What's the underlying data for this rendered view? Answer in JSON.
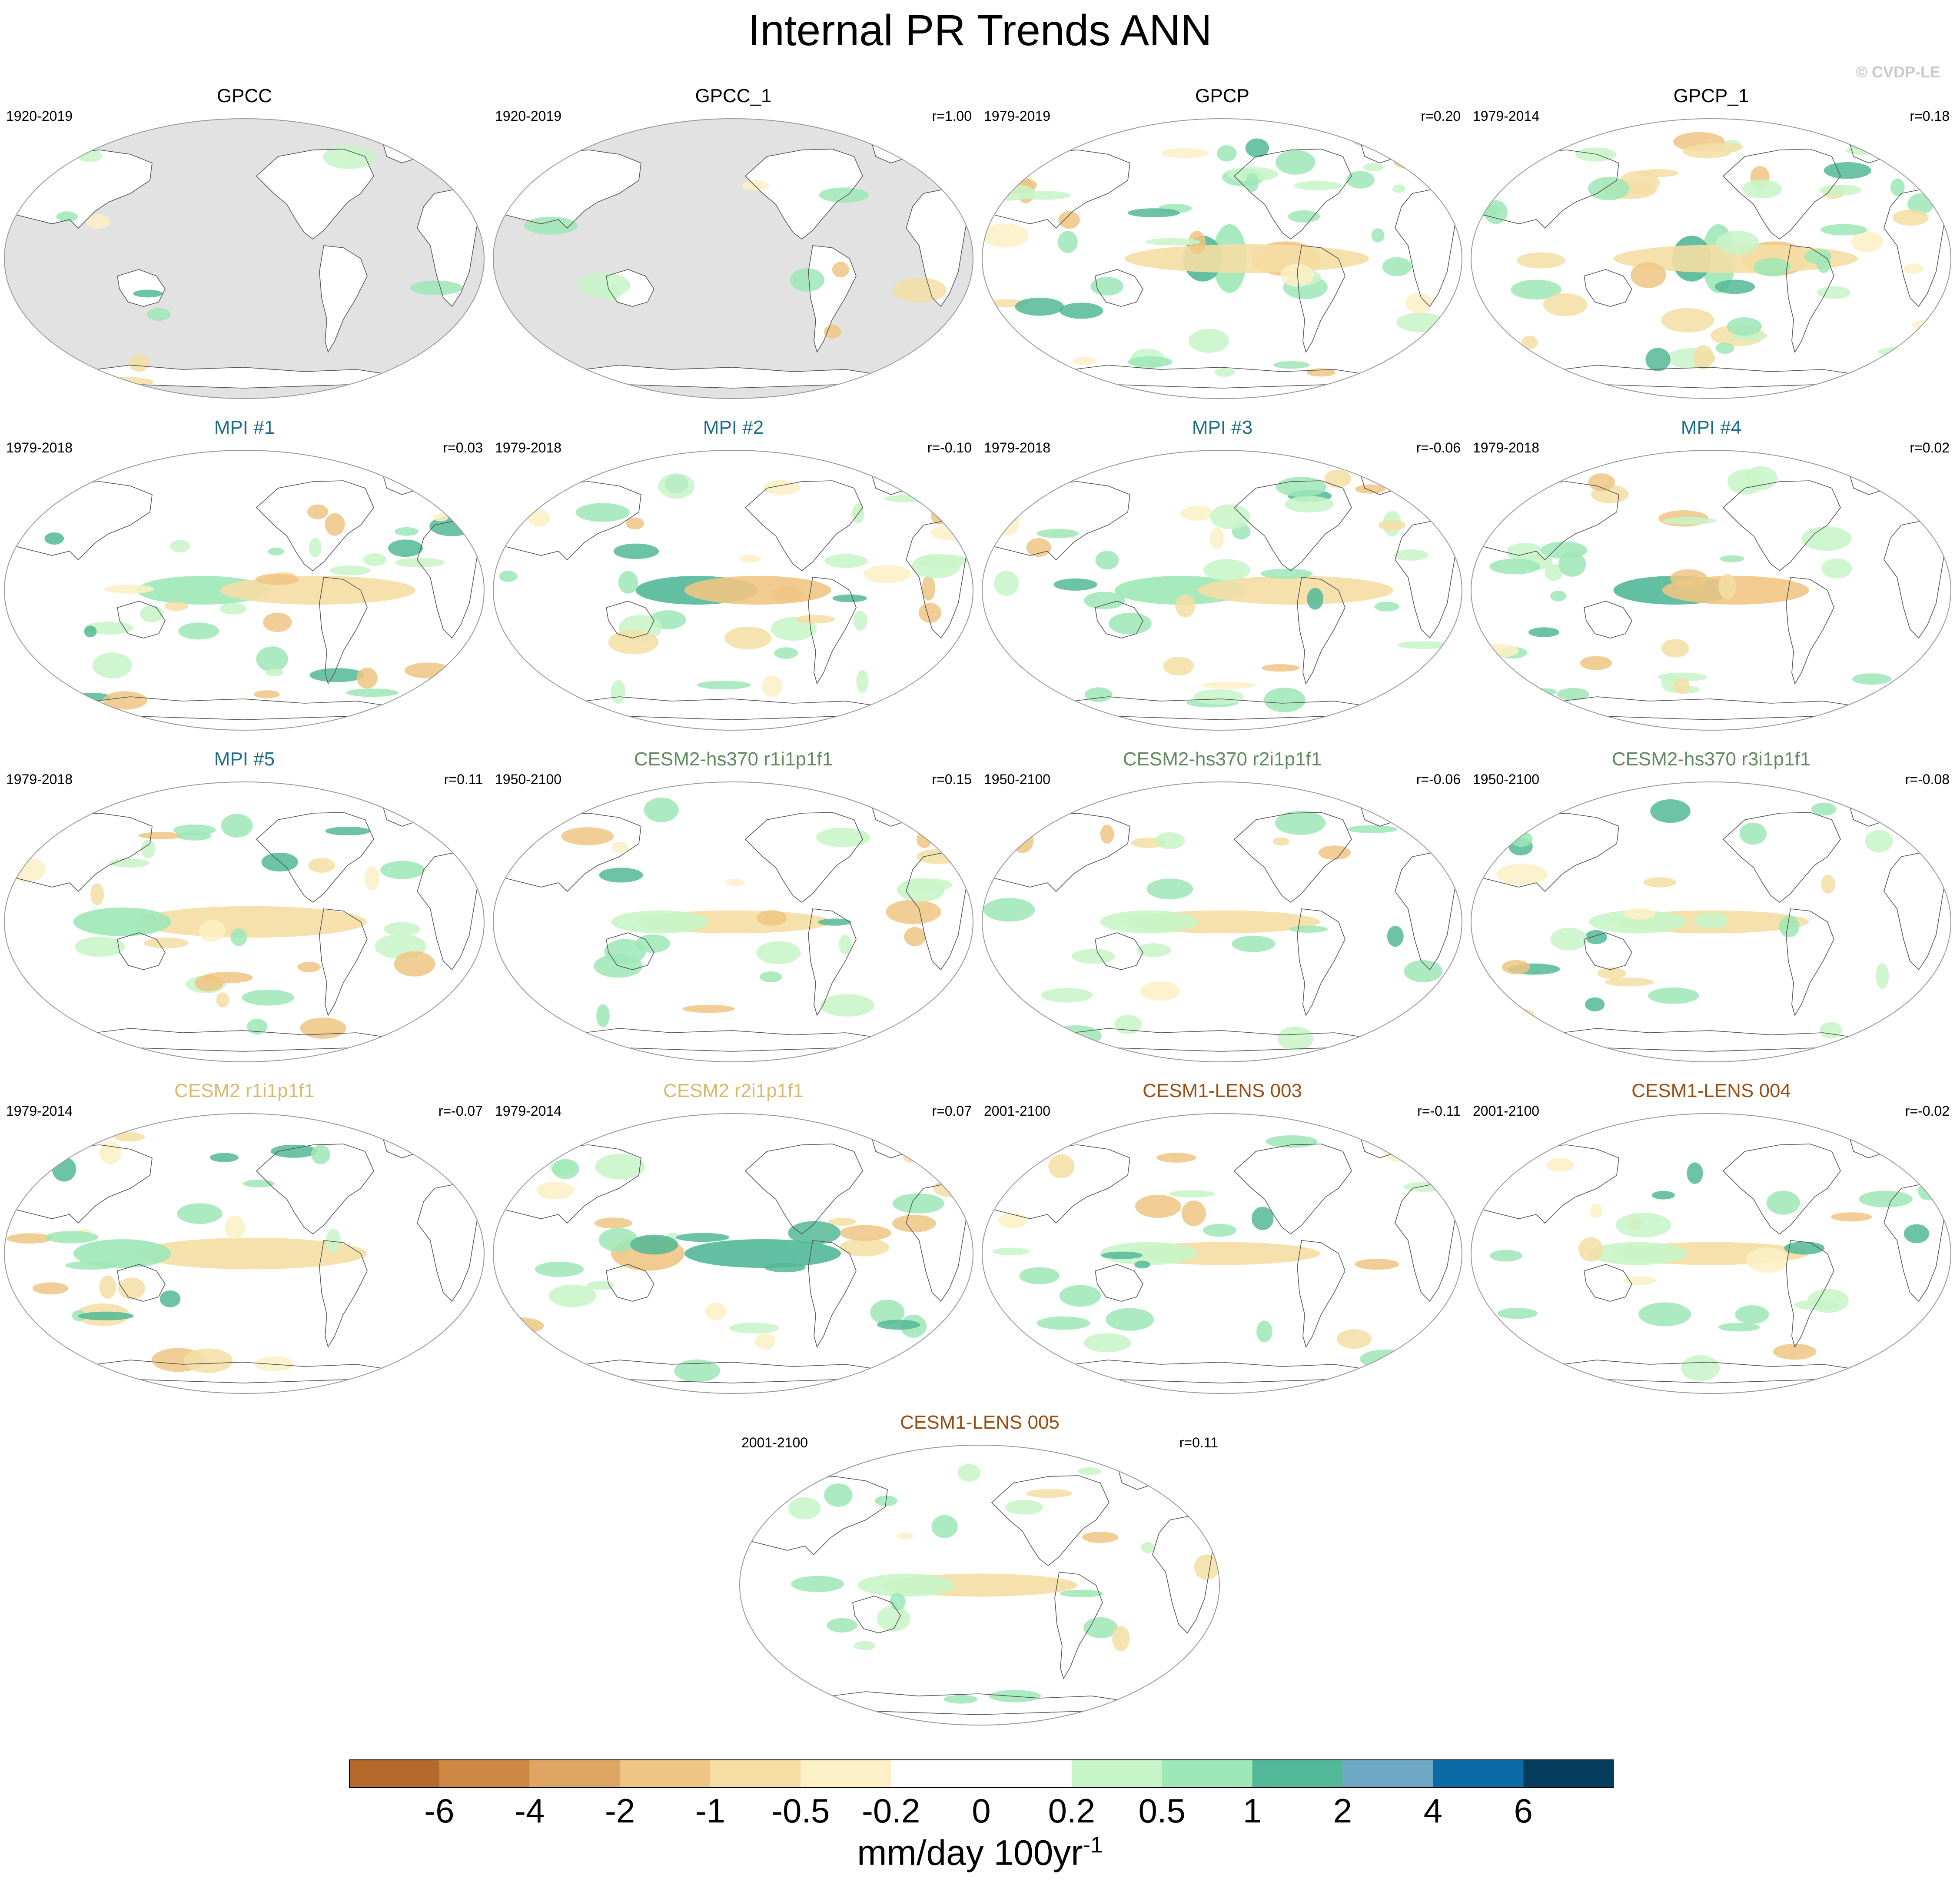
{
  "title": "Internal PR Trends ANN",
  "credit": "© CVDP-LE",
  "panels": [
    {
      "title": "GPCC",
      "title_color": "#000000",
      "years": "1920-2019",
      "corr": "",
      "style": "land"
    },
    {
      "title": "GPCC_1",
      "title_color": "#000000",
      "years": "1920-2019",
      "corr": "r=1.00",
      "style": "land"
    },
    {
      "title": "GPCP",
      "title_color": "#000000",
      "years": "1979-2019",
      "corr": "r=0.20",
      "style": "obs-strong"
    },
    {
      "title": "GPCP_1",
      "title_color": "#000000",
      "years": "1979-2014",
      "corr": "r=0.18",
      "style": "obs-strong"
    },
    {
      "title": "MPI #1",
      "title_color": "#1b6b85",
      "years": "1979-2018",
      "corr": "r=0.03",
      "style": "model-a"
    },
    {
      "title": "MPI #2",
      "title_color": "#1b6b85",
      "years": "1979-2018",
      "corr": "r=-0.10",
      "style": "model-b"
    },
    {
      "title": "MPI #3",
      "title_color": "#1b6b85",
      "years": "1979-2018",
      "corr": "r=-0.06",
      "style": "model-a"
    },
    {
      "title": "MPI #4",
      "title_color": "#1b6b85",
      "years": "1979-2018",
      "corr": "r=0.02",
      "style": "model-b"
    },
    {
      "title": "MPI #5",
      "title_color": "#1b6b85",
      "years": "1979-2018",
      "corr": "r=0.11",
      "style": "model-c"
    },
    {
      "title": "CESM2-hs370 r1i1p1f1",
      "title_color": "#5e8a5e",
      "years": "1950-2100",
      "corr": "r=0.15",
      "style": "model-weak"
    },
    {
      "title": "CESM2-hs370 r2i1p1f1",
      "title_color": "#5e8a5e",
      "years": "1950-2100",
      "corr": "r=-0.06",
      "style": "model-weak"
    },
    {
      "title": "CESM2-hs370 r3i1p1f1",
      "title_color": "#5e8a5e",
      "years": "1950-2100",
      "corr": "r=-0.08",
      "style": "model-weak"
    },
    {
      "title": "CESM2 r1i1p1f1",
      "title_color": "#d9b86a",
      "years": "1979-2014",
      "corr": "r=-0.07",
      "style": "model-c"
    },
    {
      "title": "CESM2 r2i1p1f1",
      "title_color": "#d9b86a",
      "years": "1979-2014",
      "corr": "r=0.07",
      "style": "model-d"
    },
    {
      "title": "CESM1-LENS 003",
      "title_color": "#9a4d12",
      "years": "2001-2100",
      "corr": "r=-0.11",
      "style": "model-weak"
    },
    {
      "title": "CESM1-LENS 004",
      "title_color": "#9a4d12",
      "years": "2001-2100",
      "corr": "r=-0.02",
      "style": "model-weak"
    },
    {
      "title": "CESM1-LENS 005",
      "title_color": "#9a4d12",
      "years": "2001-2100",
      "corr": "r=0.11",
      "style": "model-weak"
    }
  ],
  "colorbar": {
    "colors": [
      "#b5692a",
      "#cf8843",
      "#dfa563",
      "#efc583",
      "#f5dea4",
      "#fcf1c6",
      "#ffffff",
      "#ffffff",
      "#c8f5c8",
      "#9de8b6",
      "#52b897",
      "#6ea8c5",
      "#0c6aa6",
      "#053c5e"
    ],
    "labels": [
      "-6",
      "-4",
      "-2",
      "-1",
      "-0.5",
      "-0.2",
      "0",
      "0.2",
      "0.5",
      "1",
      "2",
      "4",
      "6"
    ],
    "units": "mm/day 100yr",
    "units_sup": "-1"
  }
}
